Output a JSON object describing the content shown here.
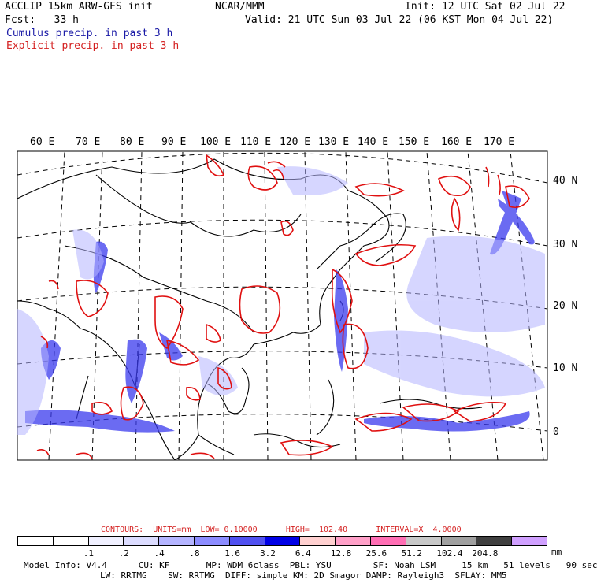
{
  "header": {
    "line1_left": "ACCLIP 15km ARW-GFS init",
    "center": "NCAR/MMM",
    "init": "Init: 12 UTC Sat 02 Jul 22",
    "fcst": "Fcst:   33 h",
    "valid": "Valid: 21 UTC Sun 03 Jul 22 (06 KST Mon 04 Jul 22)",
    "cumulus": "Cumulus precip. in past 3 h",
    "explicit": "Explicit precip. in past 3 h"
  },
  "lon_labels": [
    "60 E",
    "70 E",
    "80 E",
    "90 E",
    "100 E",
    "110 E",
    "120 E",
    "130 E",
    "140 E",
    "150 E",
    "160 E",
    "170 E"
  ],
  "lat_labels": [
    "40 N",
    "30 N",
    "20 N",
    "10 N",
    "0"
  ],
  "contours": {
    "label": "CONTOURS:",
    "units": "UNITS=mm",
    "low": "LOW= 0.10000",
    "high": "HIGH=  102.40",
    "interval": "INTERVAL=X  4.0000"
  },
  "legend": {
    "colors": [
      "#ffffff",
      "#ffffff",
      "#f0f0ff",
      "#dcdcff",
      "#b4b4ff",
      "#8c8cff",
      "#5050f0",
      "#0000e6",
      "#ffd0d0",
      "#ffa0c8",
      "#ff6eb4",
      "#c8c8c8",
      "#a0a0a0",
      "#404040",
      "#d0a0ff"
    ],
    "ticks": [
      ".1",
      ".2",
      ".4",
      ".8",
      "1.6",
      "3.2",
      "6.4",
      "12.8",
      "25.6",
      "51.2",
      "102.4",
      "204.8"
    ],
    "unit": "mm"
  },
  "model_info": {
    "line1": "Model Info: V4.4      CU: KF       MP: WDM 6class  PBL: YSU        SF: Noah LSM     15 km   51 levels   90 sec",
    "line2": "LW: RRTMG    SW: RRTMG  DIFF: simple KM: 2D Smagor DAMP: Rayleigh3  SFLAY: MM5"
  },
  "colors": {
    "explicit": "#e01010",
    "cumulus": "#1a1ae6"
  }
}
